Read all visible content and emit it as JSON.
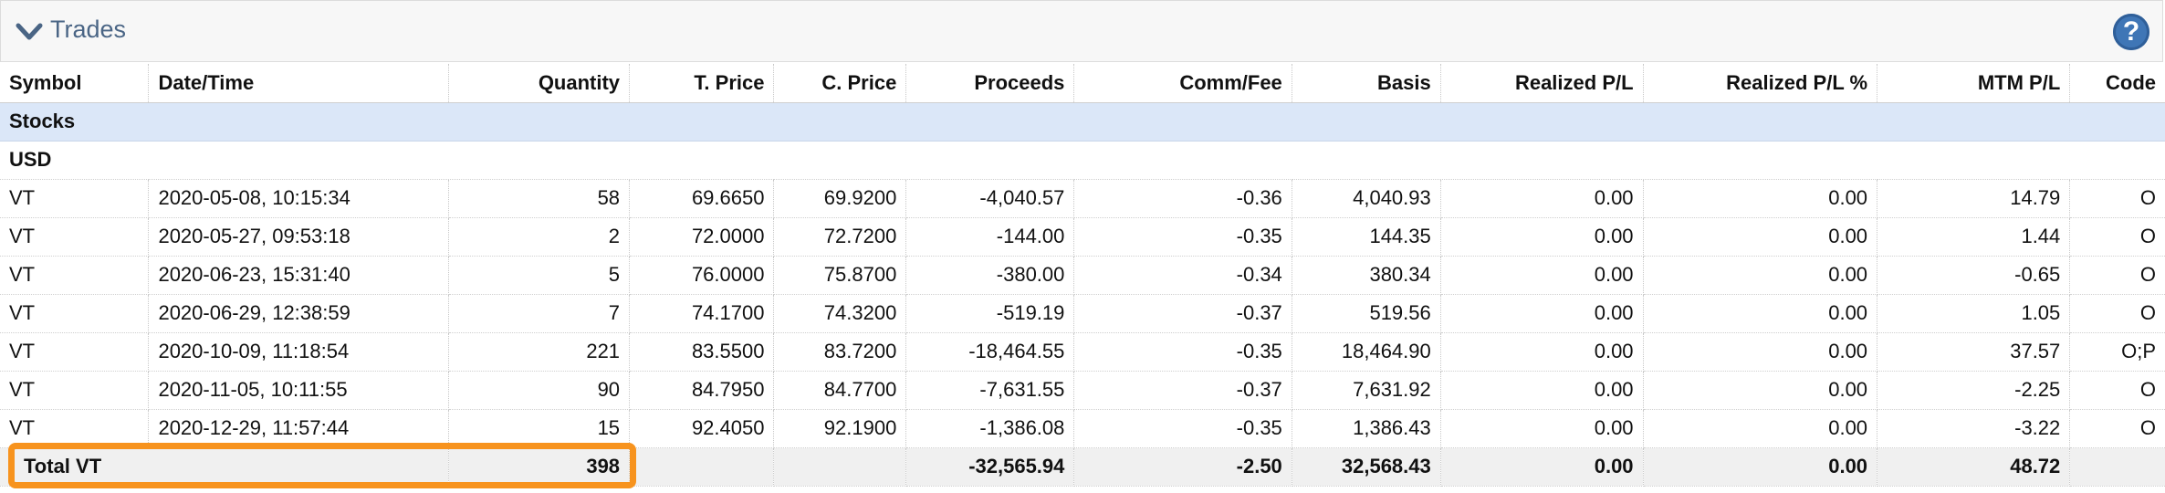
{
  "section": {
    "title": "Trades",
    "collapse_icon": "chevron-down-icon",
    "help_icon": "help-icon",
    "help_glyph": "?"
  },
  "columns": [
    {
      "label": "Symbol",
      "align": "l"
    },
    {
      "label": "Date/Time",
      "align": "l"
    },
    {
      "label": "Quantity",
      "align": "r"
    },
    {
      "label": "T. Price",
      "align": "r"
    },
    {
      "label": "C. Price",
      "align": "r"
    },
    {
      "label": "Proceeds",
      "align": "r"
    },
    {
      "label": "Comm/Fee",
      "align": "r"
    },
    {
      "label": "Basis",
      "align": "r"
    },
    {
      "label": "Realized P/L",
      "align": "r"
    },
    {
      "label": "Realized P/L %",
      "align": "r"
    },
    {
      "label": "MTM P/L",
      "align": "r"
    },
    {
      "label": "Code",
      "align": "r"
    }
  ],
  "asset_group": "Stocks",
  "currency": "USD",
  "rows": [
    [
      "VT",
      "2020-05-08, 10:15:34",
      "58",
      "69.6650",
      "69.9200",
      "-4,040.57",
      "-0.36",
      "4,040.93",
      "0.00",
      "0.00",
      "14.79",
      "O"
    ],
    [
      "VT",
      "2020-05-27, 09:53:18",
      "2",
      "72.0000",
      "72.7200",
      "-144.00",
      "-0.35",
      "144.35",
      "0.00",
      "0.00",
      "1.44",
      "O"
    ],
    [
      "VT",
      "2020-06-23, 15:31:40",
      "5",
      "76.0000",
      "75.8700",
      "-380.00",
      "-0.34",
      "380.34",
      "0.00",
      "0.00",
      "-0.65",
      "O"
    ],
    [
      "VT",
      "2020-06-29, 12:38:59",
      "7",
      "74.1700",
      "74.3200",
      "-519.19",
      "-0.37",
      "519.56",
      "0.00",
      "0.00",
      "1.05",
      "O"
    ],
    [
      "VT",
      "2020-10-09, 11:18:54",
      "221",
      "83.5500",
      "83.7200",
      "-18,464.55",
      "-0.35",
      "18,464.90",
      "0.00",
      "0.00",
      "37.57",
      "O;P"
    ],
    [
      "VT",
      "2020-11-05, 10:11:55",
      "90",
      "84.7950",
      "84.7700",
      "-7,631.55",
      "-0.37",
      "7,631.92",
      "0.00",
      "0.00",
      "-2.25",
      "O"
    ],
    [
      "VT",
      "2020-12-29, 11:57:44",
      "15",
      "92.4050",
      "92.1900",
      "-1,386.08",
      "-0.35",
      "1,386.43",
      "0.00",
      "0.00",
      "-3.22",
      "O"
    ]
  ],
  "total": {
    "label": "Total VT",
    "quantity": "398",
    "t_price": "",
    "c_price": "",
    "proceeds": "-32,565.94",
    "comm_fee": "-2.50",
    "basis": "32,568.43",
    "realized_pl": "0.00",
    "realized_pl_pct": "0.00",
    "mtm_pl": "48.72",
    "code": ""
  },
  "colors": {
    "header_text": "#4a6585",
    "group_bg": "#dbe7f8",
    "total_bg": "#f0f0f0",
    "highlight": "#f7931e",
    "help_bg": "#3f76b6"
  }
}
